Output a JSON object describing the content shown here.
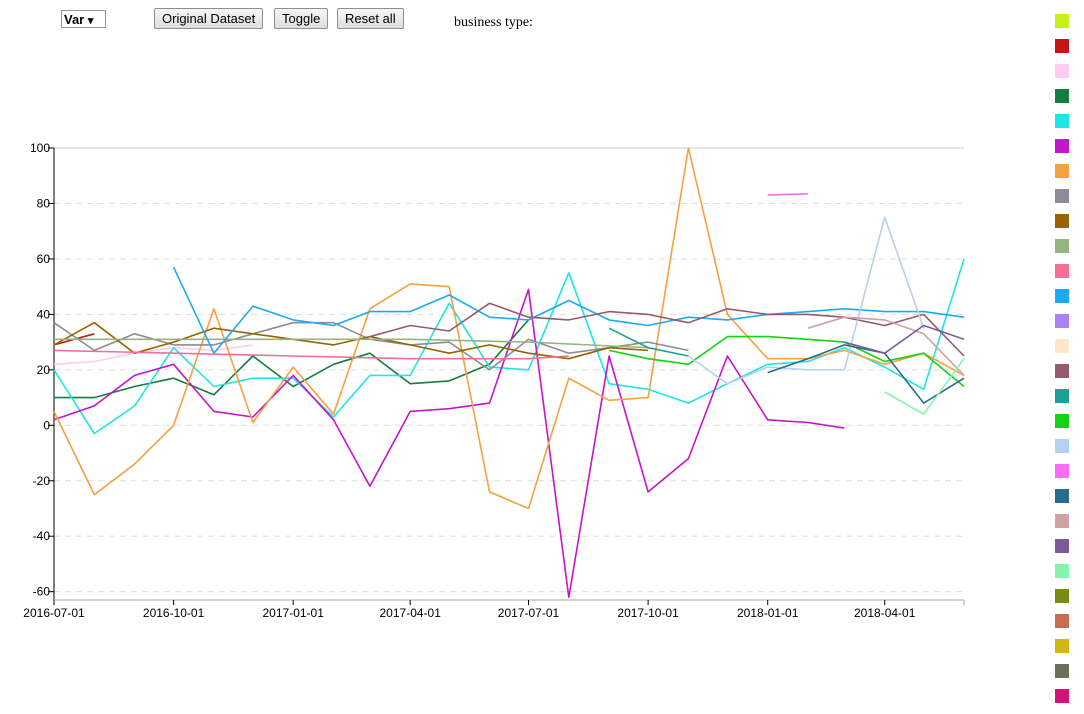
{
  "controls": {
    "var_label": "Var",
    "var_arrow": "▾",
    "original_dataset_label": "Original Dataset",
    "toggle_label": "Toggle",
    "reset_label": "Reset all",
    "business_type_label": "business type:"
  },
  "chart_data": {
    "type": "line",
    "x_ticks": [
      "2016-07-01",
      "2016-10-01",
      "2017-01-01",
      "2017-04-01",
      "2017-07-01",
      "2017-10-01",
      "2018-01-01",
      "2018-04-01"
    ],
    "y_ticks": [
      100,
      80,
      60,
      40,
      20,
      0,
      -20,
      -40,
      -60
    ],
    "ylim": [
      -63,
      100
    ],
    "xlim": [
      "2016-07-01",
      "2018-06-01"
    ],
    "grid": "horizontal dashed",
    "legend_placement": "right",
    "legend_colors": [
      "#c8f017",
      "#c81414",
      "#ffccf2",
      "#167d3c",
      "#1ee6e6",
      "#c814c8",
      "#f5a041",
      "#8c8c96",
      "#966400",
      "#96b482",
      "#f56e96",
      "#1eaaf0",
      "#aa82f5",
      "#ffe6c8",
      "#965a6e",
      "#1ea096",
      "#14d214",
      "#b4d2f0",
      "#f56ef5",
      "#286e8c",
      "#d2a0a0",
      "#7d5a9b",
      "#82f5aa",
      "#788c14",
      "#c86e50",
      "#d2b414",
      "#6e6e5a",
      "#d21478"
    ],
    "series": [
      {
        "color": "#c81414",
        "x": [
          "2016-07-01",
          "2016-08-01"
        ],
        "values": [
          29,
          33
        ]
      },
      {
        "color": "#ffccf2",
        "x": [
          "2016-07-01",
          "2016-08-01",
          "2016-09-01",
          "2016-10-01",
          "2016-11-01",
          "2016-12-01"
        ],
        "values": [
          22,
          23,
          26,
          28,
          27,
          29
        ]
      },
      {
        "color": "#167d3c",
        "x": [
          "2016-07-01",
          "2016-08-01",
          "2016-09-01",
          "2016-10-01",
          "2016-11-01",
          "2016-12-01",
          "2017-01-01",
          "2017-02-01",
          "2017-03-01",
          "2017-04-01",
          "2017-05-01",
          "2017-06-01",
          "2017-07-01"
        ],
        "values": [
          10,
          10,
          14,
          17,
          11,
          25,
          14,
          22,
          26,
          15,
          16,
          22,
          38
        ]
      },
      {
        "color": "#1ee6e6",
        "x": [
          "2016-07-01",
          "2016-08-01",
          "2016-09-01",
          "2016-10-01",
          "2016-11-01",
          "2016-12-01",
          "2017-01-01",
          "2017-02-01",
          "2017-03-01",
          "2017-04-01",
          "2017-05-01",
          "2017-06-01",
          "2017-07-01",
          "2017-08-01",
          "2017-09-01",
          "2017-10-01",
          "2017-11-01",
          "2017-12-01",
          "2018-01-01",
          "2018-02-01",
          "2018-03-01",
          "2018-04-01",
          "2018-05-01",
          "2018-06-01"
        ],
        "values": [
          20,
          -3,
          7,
          28,
          14,
          17,
          17,
          3,
          18,
          18,
          44,
          21,
          20,
          55,
          15,
          13,
          8,
          15,
          22,
          23,
          28,
          21,
          13,
          60
        ]
      },
      {
        "color": "#c814c8",
        "x": [
          "2016-07-01",
          "2016-08-01",
          "2016-09-01",
          "2016-10-01",
          "2016-11-01",
          "2016-12-01",
          "2017-01-01",
          "2017-02-01",
          "2017-03-01",
          "2017-04-01",
          "2017-05-01",
          "2017-06-01",
          "2017-07-01",
          "2017-08-01",
          "2017-09-01",
          "2017-10-01",
          "2017-11-01",
          "2017-12-01",
          "2018-01-01",
          "2018-02-01",
          "2018-03-01"
        ],
        "values": [
          2,
          7,
          18,
          22,
          5,
          3,
          18,
          2,
          -22,
          5,
          6,
          8,
          49,
          -62,
          25,
          -24,
          -12,
          25,
          2,
          1,
          -1
        ]
      },
      {
        "color": "#f5a041",
        "x": [
          "2016-07-01",
          "2016-08-01",
          "2016-09-01",
          "2016-10-01",
          "2016-11-01",
          "2016-12-01",
          "2017-01-01",
          "2017-02-01",
          "2017-03-01",
          "2017-04-01",
          "2017-05-01",
          "2017-06-01",
          "2017-07-01",
          "2017-08-01",
          "2017-09-01",
          "2017-10-01",
          "2017-11-01",
          "2017-12-01",
          "2018-01-01",
          "2018-02-01",
          "2018-03-01",
          "2018-04-01",
          "2018-05-01",
          "2018-06-01"
        ],
        "values": [
          5,
          -25,
          -14,
          0,
          42,
          1,
          21,
          4,
          42,
          51,
          50,
          -24,
          -30,
          17,
          9,
          10,
          100,
          40,
          24,
          24,
          27,
          22,
          26,
          18
        ]
      },
      {
        "color": "#8c8c96",
        "x": [
          "2016-07-01",
          "2016-08-01",
          "2016-09-01",
          "2016-10-01",
          "2016-11-01",
          "2016-12-01",
          "2017-01-01",
          "2017-02-01",
          "2017-03-01",
          "2017-04-01",
          "2017-05-01",
          "2017-06-01",
          "2017-07-01",
          "2017-08-01",
          "2017-09-01",
          "2017-10-01",
          "2017-11-01"
        ],
        "values": [
          37,
          27,
          33,
          29,
          29,
          33,
          37,
          37,
          31,
          29,
          30,
          20,
          31,
          26,
          28,
          30,
          27
        ]
      },
      {
        "color": "#966400",
        "x": [
          "2016-07-01",
          "2016-08-01",
          "2016-09-01",
          "2016-10-01",
          "2016-11-01",
          "2016-12-01",
          "2017-01-01",
          "2017-02-01",
          "2017-03-01",
          "2017-04-01",
          "2017-05-01",
          "2017-06-01",
          "2017-07-01",
          "2017-08-01",
          "2017-09-01",
          "2017-10-01"
        ],
        "values": [
          29,
          37,
          26,
          30,
          35,
          33,
          31,
          29,
          32,
          29,
          26,
          29,
          26,
          24,
          28,
          27
        ]
      },
      {
        "color": "#96b482",
        "x": [
          "2016-07-01",
          "2016-10-01",
          "2017-01-01",
          "2017-04-01",
          "2017-07-01",
          "2017-10-01"
        ],
        "values": [
          31,
          31,
          31,
          31,
          30,
          28
        ]
      },
      {
        "color": "#f56e96",
        "x": [
          "2016-07-01",
          "2016-10-01",
          "2017-01-01",
          "2017-04-01",
          "2017-07-01",
          "2017-08-01"
        ],
        "values": [
          27,
          26,
          25,
          24,
          24,
          25
        ]
      },
      {
        "color": "#1eaaf0",
        "x": [
          "2016-10-01",
          "2016-11-01",
          "2016-12-01",
          "2017-01-01",
          "2017-02-01",
          "2017-03-01",
          "2017-04-01",
          "2017-05-01",
          "2017-06-01",
          "2017-07-01",
          "2017-08-01",
          "2017-09-01",
          "2017-10-01",
          "2017-11-01",
          "2017-12-01",
          "2018-01-01",
          "2018-02-01",
          "2018-03-01",
          "2018-04-01",
          "2018-05-01",
          "2018-06-01"
        ],
        "values": [
          57,
          26,
          43,
          38,
          36,
          41,
          41,
          47,
          39,
          38,
          45,
          38,
          36,
          39,
          38,
          40,
          41,
          42,
          41,
          41,
          39
        ]
      },
      {
        "color": "#965a6e",
        "x": [
          "2017-03-01",
          "2017-04-01",
          "2017-05-01",
          "2017-06-01",
          "2017-07-01",
          "2017-08-01",
          "2017-09-01",
          "2017-10-01",
          "2017-11-01",
          "2017-12-01",
          "2018-01-01",
          "2018-02-01",
          "2018-03-01",
          "2018-04-01",
          "2018-05-01",
          "2018-06-01"
        ],
        "values": [
          32,
          36,
          34,
          44,
          39,
          38,
          41,
          40,
          37,
          42,
          40,
          40,
          39,
          36,
          40,
          25
        ]
      },
      {
        "color": "#1ea096",
        "x": [
          "2017-09-01",
          "2017-10-01",
          "2017-11-01"
        ],
        "values": [
          35,
          28,
          25
        ]
      },
      {
        "color": "#14d214",
        "x": [
          "2017-09-01",
          "2017-10-01",
          "2017-11-01",
          "2017-12-01",
          "2018-01-01",
          "2018-02-01",
          "2018-03-01",
          "2018-04-01",
          "2018-05-01",
          "2018-06-01"
        ],
        "values": [
          27,
          24,
          22,
          32,
          32,
          31,
          30,
          23,
          26,
          14
        ]
      },
      {
        "color": "#b4d2f0",
        "x": [
          "2017-11-01",
          "2017-12-01",
          "2018-01-01",
          "2018-02-01",
          "2018-03-01",
          "2018-04-01",
          "2018-05-01"
        ],
        "values": [
          25,
          15,
          21,
          20,
          20,
          75,
          35
        ]
      },
      {
        "color": "#f56ef5",
        "x": [
          "2018-01-01",
          "2018-02-01"
        ],
        "values": [
          83,
          83.5
        ]
      },
      {
        "color": "#286e8c",
        "x": [
          "2018-01-01",
          "2018-02-01",
          "2018-03-01",
          "2018-04-01",
          "2018-05-01",
          "2018-06-01"
        ],
        "values": [
          19,
          24,
          29,
          26,
          8,
          17
        ]
      },
      {
        "color": "#d2a0a0",
        "x": [
          "2018-02-01",
          "2018-03-01",
          "2018-04-01",
          "2018-05-01",
          "2018-06-01"
        ],
        "values": [
          35,
          39,
          38,
          33,
          18
        ]
      },
      {
        "color": "#7d5a9b",
        "x": [
          "2018-03-01",
          "2018-04-01",
          "2018-05-01",
          "2018-06-01"
        ],
        "values": [
          30,
          26,
          36,
          31
        ]
      },
      {
        "color": "#82f5aa",
        "x": [
          "2018-04-01",
          "2018-05-01",
          "2018-06-01"
        ],
        "values": [
          12,
          4,
          24
        ]
      }
    ]
  }
}
